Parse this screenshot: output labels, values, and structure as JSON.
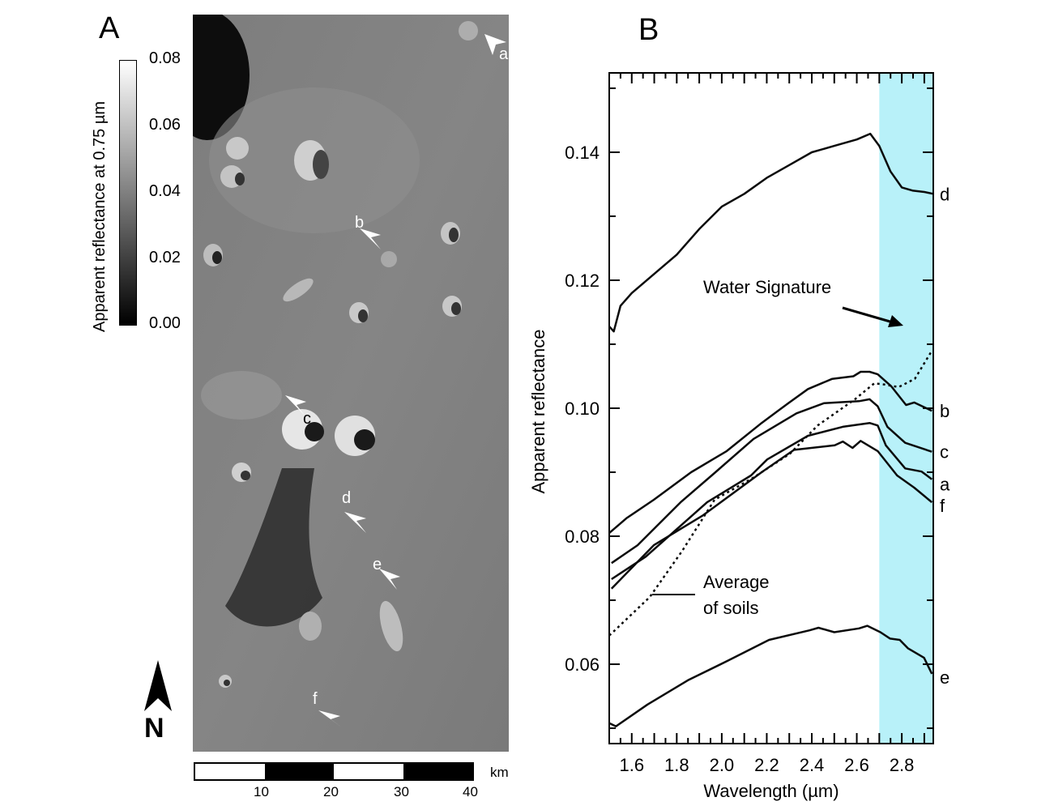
{
  "panel_a": {
    "label": "A",
    "colorbar": {
      "title": "Apparent reflectance at 0.75 µm",
      "ticks": [
        "0.08",
        "0.06",
        "0.04",
        "0.02",
        "0.00"
      ],
      "range": [
        0.0,
        0.08
      ],
      "colors": [
        "#000000",
        "#ffffff"
      ]
    },
    "site_labels": [
      "a",
      "b",
      "c",
      "d",
      "e",
      "f"
    ],
    "north_label": "N",
    "scale_bar": {
      "ticks": [
        "10",
        "20",
        "30",
        "40"
      ],
      "unit": "km"
    }
  },
  "chart_data": {
    "type": "line",
    "panel_label": "B",
    "xlabel": "Wavelength (µm)",
    "ylabel": "Apparent reflectance",
    "xlim": [
      1.5,
      2.94
    ],
    "ylim": [
      0.0476,
      0.1524
    ],
    "xticks": [
      "1.6",
      "1.8",
      "2.0",
      "2.2",
      "2.4",
      "2.6",
      "2.8"
    ],
    "yticks": [
      "0.06",
      "0.08",
      "0.10",
      "0.12",
      "0.14"
    ],
    "grid": false,
    "highlight_band": {
      "x": [
        2.7,
        2.94
      ],
      "color": "#b8f1f9"
    },
    "annotations": {
      "water": "Water Signature",
      "average_line1": "Average",
      "average_line2": "of soils"
    },
    "series": [
      {
        "name": "d",
        "style": "solid",
        "x": [
          1.5,
          1.52,
          1.55,
          1.6,
          1.7,
          1.8,
          1.9,
          2.0,
          2.1,
          2.2,
          2.3,
          2.4,
          2.5,
          2.6,
          2.66,
          2.7,
          2.75,
          2.8,
          2.85,
          2.9,
          2.94
        ],
        "y": [
          0.1128,
          0.112,
          0.116,
          0.118,
          0.121,
          0.124,
          0.128,
          0.1315,
          0.1335,
          0.136,
          0.138,
          0.14,
          0.141,
          0.142,
          0.1429,
          0.141,
          0.137,
          0.1345,
          0.134,
          0.1338,
          0.1335
        ]
      },
      {
        "name": "b",
        "style": "solid",
        "x": [
          1.5,
          1.576,
          1.698,
          1.864,
          2.022,
          2.177,
          2.296,
          2.383,
          2.491,
          2.585,
          2.617,
          2.657,
          2.693,
          2.754,
          2.819,
          2.855,
          2.934
        ],
        "y": [
          0.0805,
          0.0828,
          0.0857,
          0.09,
          0.0933,
          0.0977,
          0.1008,
          0.103,
          0.1046,
          0.105,
          0.1057,
          0.1057,
          0.1053,
          0.1034,
          0.1005,
          0.1009,
          0.0996
        ]
      },
      {
        "name": "c",
        "style": "solid",
        "x": [
          1.51,
          1.626,
          1.817,
          1.972,
          2.141,
          2.332,
          2.455,
          2.61,
          2.657,
          2.693,
          2.736,
          2.815,
          2.934
        ],
        "y": [
          0.0758,
          0.0786,
          0.0853,
          0.09,
          0.0952,
          0.0992,
          0.1008,
          0.1011,
          0.1014,
          0.1003,
          0.0971,
          0.0946,
          0.0932
        ]
      },
      {
        "name": "a",
        "style": "solid",
        "x": [
          1.51,
          1.662,
          1.935,
          2.13,
          2.202,
          2.383,
          2.538,
          2.657,
          2.693,
          2.729,
          2.815,
          2.888,
          2.934
        ],
        "y": [
          0.0733,
          0.0768,
          0.0853,
          0.0895,
          0.092,
          0.0957,
          0.0971,
          0.0977,
          0.0973,
          0.0942,
          0.0906,
          0.0901,
          0.0889
        ]
      },
      {
        "name": "f",
        "style": "solid",
        "x": [
          1.51,
          1.698,
          1.914,
          2.177,
          2.321,
          2.502,
          2.538,
          2.581,
          2.617,
          2.693,
          2.779,
          2.855,
          2.934
        ],
        "y": [
          0.0718,
          0.0786,
          0.0832,
          0.09,
          0.0935,
          0.0942,
          0.0948,
          0.0938,
          0.0949,
          0.0933,
          0.0895,
          0.0876,
          0.0853
        ]
      },
      {
        "name": "Average of soils",
        "style": "dotted",
        "x": [
          1.5,
          1.51,
          1.68,
          1.824,
          1.968,
          2.138,
          2.303,
          2.426,
          2.592,
          2.678,
          2.725,
          2.786,
          2.858,
          2.934
        ],
        "y": [
          0.0645,
          0.0648,
          0.0705,
          0.0777,
          0.0857,
          0.0891,
          0.0929,
          0.0973,
          0.1014,
          0.1039,
          0.1037,
          0.1033,
          0.1046,
          0.109
        ]
      },
      {
        "name": "e",
        "style": "solid",
        "x": [
          1.5,
          1.53,
          1.67,
          1.85,
          2.03,
          2.21,
          2.39,
          2.43,
          2.5,
          2.61,
          2.647,
          2.705,
          2.748,
          2.791,
          2.827,
          2.899,
          2.934
        ],
        "y": [
          0.0508,
          0.0503,
          0.0537,
          0.0575,
          0.0606,
          0.0638,
          0.0653,
          0.0657,
          0.065,
          0.0656,
          0.066,
          0.065,
          0.064,
          0.0638,
          0.0625,
          0.061,
          0.0585
        ]
      }
    ]
  }
}
